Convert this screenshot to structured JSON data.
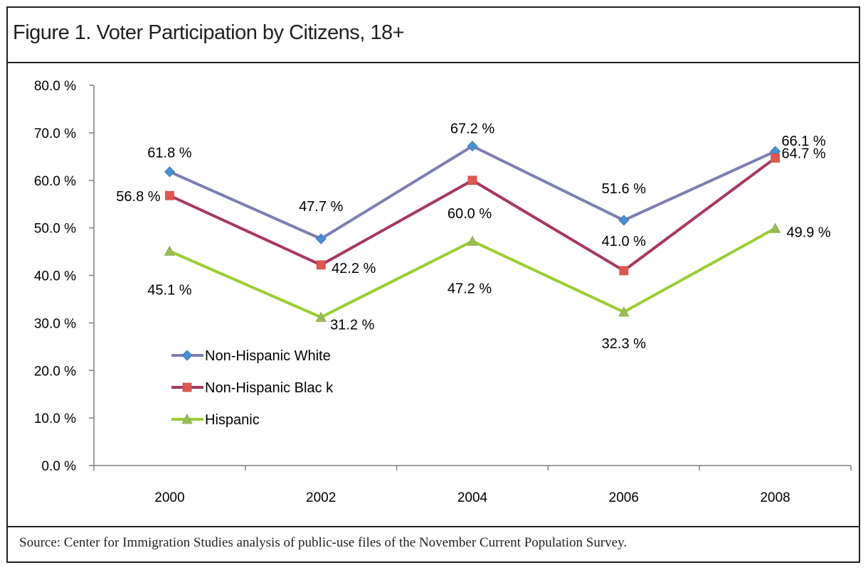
{
  "title": "Figure 1. Voter Participation by Citizens, 18+",
  "source": "Source: Center for Immigration Studies analysis of public-use files of the November Current Population Survey.",
  "chart_data": {
    "type": "line",
    "categories": [
      "2000",
      "2002",
      "2004",
      "2006",
      "2008"
    ],
    "ylim": [
      0,
      80
    ],
    "yticks": [
      "0.0 %",
      "10.0 %",
      "20.0 %",
      "30.0 %",
      "40.0 %",
      "50.0 %",
      "60.0 %",
      "70.0 %",
      "80.0 %"
    ],
    "grid": false,
    "legend_position": "lower-left",
    "series": [
      {
        "name": "Non-Hispanic White",
        "values": [
          61.8,
          47.7,
          67.2,
          51.6,
          66.1
        ],
        "labels": [
          "61.8 %",
          "47.7 %",
          "67.2 %",
          "51.6 %",
          "66.1 %"
        ],
        "color": "#7b7fb2",
        "marker_color": "#4a8fd0",
        "marker": "diamond"
      },
      {
        "name": "Non-Hispanic Blac k",
        "values": [
          56.8,
          42.2,
          60.0,
          41.0,
          64.7
        ],
        "labels": [
          "56.8 %",
          "42.2 %",
          "60.0 %",
          "41.0 %",
          "64.7 %"
        ],
        "color": "#a6385f",
        "marker_color": "#e0574f",
        "marker": "square"
      },
      {
        "name": "Hispanic",
        "values": [
          45.1,
          31.2,
          47.2,
          32.3,
          49.9
        ],
        "labels": [
          "45.1 %",
          "31.2 %",
          "47.2 %",
          "32.3 %",
          "49.9 %"
        ],
        "color": "#9acd32",
        "marker_color": "#9bbb59",
        "marker": "triangle"
      }
    ]
  }
}
